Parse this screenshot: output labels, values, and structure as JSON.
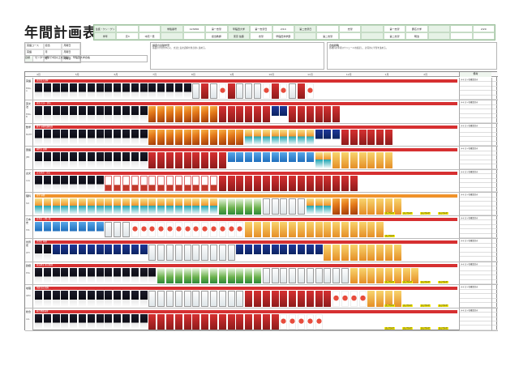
{
  "page": {
    "title": "年間計画表"
  },
  "header": {
    "info_cells": [
      "生徒・ケン・ゲン",
      "",
      "",
      "学籍番号",
      "123456",
      "第一志望",
      "早稲田大学",
      "第一志望日",
      "2/14",
      "第二志望日",
      "",
      "志望",
      "",
      "第一志望",
      "慶応大学",
      "",
      "",
      "2/20",
      "学年",
      "高3",
      "中高一貫",
      "",
      "",
      "担当教師",
      "東京 佐藤",
      "志望",
      "早稲田商学部",
      "",
      "第二志望",
      "",
      "",
      "第二志望",
      "明治",
      "",
      "",
      ""
    ],
    "left_meta": [
      "英語コース",
      "担当",
      "月曜日",
      "英語",
      "月",
      "月曜日",
      "国語",
      "月",
      "月曜日"
    ],
    "goal_key": "目標",
    "goal_text": "センター試験で9割以上を目指し、早稲田大学合格",
    "note_left_title": "講座の基礎学習",
    "note_left": "基礎の学習を中心に、文法と長文読解を重点的に進める。",
    "note_right_title": "合格戦略",
    "note_right": "各教科の年間スケジュールを確認し、計画的に学習を進める。"
  },
  "months": [
    "4月",
    "5月",
    "6月",
    "7月",
    "8月",
    "9月",
    "10月",
    "11月",
    "12月",
    "1月",
    "2月"
  ],
  "remarks_header": "備考",
  "rows": [
    {
      "subject": "英語",
      "code": "ENG-A",
      "band": "英語長文読解",
      "band_color": "#d63031",
      "books": [
        "dark",
        "dark",
        "dark",
        "dark",
        "dark",
        "dark",
        "dark",
        "dark",
        "dark",
        "dark",
        "dark",
        "dark",
        "dark",
        "dark",
        "dark",
        "dark",
        "dark",
        "dark",
        "book2",
        "red",
        "book2",
        "fruit",
        "red",
        "book2",
        "book2",
        "book2",
        "fruit",
        "red",
        "fruit",
        "book2",
        "red",
        "fruit"
      ],
      "remarks": [
        "テキスト名確認済み",
        "",
        "",
        "",
        ""
      ]
    },
    {
      "subject": "英文法",
      "code": "ENG-B",
      "band": "英語 文法・語法",
      "band_color": "#d63031",
      "books": [
        "dark",
        "dark",
        "dark",
        "dark",
        "dark",
        "dark",
        "dark",
        "dark",
        "dark",
        "dark",
        "dark",
        "dark",
        "dark",
        "orange",
        "orange",
        "orange",
        "orange",
        "orange",
        "orange",
        "orange",
        "orange",
        "red",
        "red",
        "red",
        "red",
        "red",
        "red",
        "navy",
        "navy",
        "red",
        "red",
        "red",
        "red",
        "red",
        "red"
      ],
      "remarks": [
        "テキスト名確認済み",
        "",
        "",
        "",
        ""
      ]
    },
    {
      "subject": "数学",
      "code": "MATH",
      "band": "数学 基礎問題精講",
      "band_color": "#d63031",
      "books": [
        "dark",
        "dark",
        "dark",
        "dark",
        "dark",
        "dark",
        "dark",
        "dark",
        "dark",
        "dark",
        "dark",
        "dark",
        "dark",
        "orange",
        "orange",
        "orange",
        "orange",
        "orange",
        "orange",
        "orange",
        "orange",
        "orange",
        "orange",
        "orange",
        "colorful",
        "colorful",
        "colorful",
        "colorful",
        "colorful",
        "colorful",
        "colorful",
        "colorful",
        "navy",
        "navy",
        "navy",
        "red",
        "red",
        "red",
        "red",
        "red",
        "red"
      ],
      "remarks": [
        "テキスト名確認済み",
        "",
        "",
        "",
        ""
      ]
    },
    {
      "subject": "国語",
      "code": "JPN",
      "band": "現代文 読解",
      "band_color": "#d63031",
      "books": [
        "dark",
        "dark",
        "dark",
        "dark",
        "dark",
        "dark",
        "dark",
        "dark",
        "dark",
        "dark",
        "dark",
        "dark",
        "dark",
        "red",
        "red",
        "red",
        "red",
        "red",
        "red",
        "red",
        "red",
        "red",
        "blue",
        "blue",
        "blue",
        "blue",
        "blue",
        "blue",
        "blue",
        "blue",
        "blue",
        "blue",
        "colorful",
        "colorful",
        "gold",
        "gold",
        "gold",
        "gold",
        "gold",
        "gold",
        "gold"
      ],
      "remarks": [
        "テキスト名確認済み",
        "",
        "",
        "",
        ""
      ]
    },
    {
      "subject": "古文",
      "code": "CLS",
      "band": "古文単語・文法",
      "band_color": "#d63031",
      "books": [
        "dark",
        "dark",
        "dark",
        "dark",
        "dark",
        "dark",
        "dark",
        "dark",
        "white",
        "white",
        "white",
        "white",
        "white",
        "white",
        "white",
        "white",
        "white",
        "white",
        "white",
        "white",
        "white",
        "red",
        "red",
        "red",
        "red",
        "red",
        "red",
        "red",
        "red",
        "red",
        "red",
        "red",
        "red",
        "red",
        "red",
        "red",
        "red"
      ],
      "remarks": [
        "テキスト名確認済み",
        "",
        "",
        "",
        ""
      ]
    },
    {
      "subject": "理科",
      "code": "SCI",
      "band": "化学 基礎",
      "band_color": "#f0932b",
      "books": [
        "colorful",
        "colorful",
        "colorful",
        "colorful",
        "colorful",
        "colorful",
        "colorful",
        "colorful",
        "colorful",
        "colorful",
        "colorful",
        "colorful",
        "colorful",
        "colorful",
        "colorful",
        "colorful",
        "colorful",
        "colorful",
        "colorful",
        "colorful",
        "colorful",
        "green",
        "green",
        "green",
        "green",
        "green",
        "book2",
        "book2",
        "book2",
        "book2",
        "book2",
        "colorful",
        "colorful",
        "colorful",
        "orange",
        "orange",
        "orange",
        "gold",
        "gold",
        "gold",
        "gold",
        "gold"
      ],
      "remarks": [
        "テキスト名確認済み",
        "",
        "",
        "",
        ""
      ],
      "tags": [
        "過去問演習",
        "過去問演習",
        "過去問演習",
        "過去問演習"
      ]
    },
    {
      "subject": "日本史",
      "code": "HIS",
      "band": "日本史 一問一答",
      "band_color": "#d63031",
      "books": [
        "blue",
        "blue",
        "blue",
        "blue",
        "blue",
        "blue",
        "blue",
        "blue",
        "book2",
        "book2",
        "book2",
        "fruit",
        "fruit",
        "fruit",
        "fruit",
        "fruit",
        "fruit",
        "fruit",
        "fruit",
        "fruit",
        "fruit",
        "fruit",
        "fruit",
        "fruit",
        "gold",
        "gold",
        "gold",
        "gold",
        "gold",
        "gold",
        "gold",
        "gold",
        "gold",
        "gold",
        "gold",
        "gold",
        "gold",
        "gold",
        "gold",
        "gold"
      ],
      "remarks": [
        "テキスト名確認済み",
        "",
        "",
        "",
        ""
      ],
      "tags": [
        "過去問演習"
      ]
    },
    {
      "subject": "世界史",
      "code": "WH",
      "band": "世界史 基礎",
      "band_color": "#d63031",
      "books": [
        "dark",
        "dark",
        "navy",
        "navy",
        "navy",
        "navy",
        "navy",
        "navy",
        "navy",
        "navy",
        "navy",
        "navy",
        "navy",
        "book2",
        "book2",
        "book2",
        "book2",
        "book2",
        "book2",
        "book2",
        "book2",
        "book2",
        "book2",
        "navy",
        "navy",
        "navy",
        "navy",
        "navy",
        "navy",
        "navy",
        "navy",
        "navy",
        "navy",
        "gold",
        "gold",
        "gold",
        "gold",
        "gold",
        "gold",
        "gold",
        "gold",
        "gold"
      ],
      "remarks": [
        "テキスト名確認済み",
        "",
        "",
        "",
        ""
      ]
    },
    {
      "subject": "政経",
      "code": "POL",
      "band": "政治経済 要点整理",
      "band_color": "#d63031",
      "books": [
        "dark",
        "dark",
        "dark",
        "dark",
        "dark",
        "dark",
        "dark",
        "dark",
        "dark",
        "dark",
        "dark",
        "dark",
        "dark",
        "dark",
        "green",
        "green",
        "green",
        "green",
        "green",
        "green",
        "green",
        "green",
        "green",
        "green",
        "green",
        "green",
        "book2",
        "book2",
        "book2",
        "book2",
        "book2",
        "book2",
        "book2",
        "book2",
        "book2",
        "book2",
        "gold",
        "gold",
        "gold",
        "gold",
        "gold",
        "gold",
        "gold",
        "gold"
      ],
      "remarks": [
        "テキスト名確認済み",
        "",
        "",
        "",
        ""
      ],
      "tags": [
        "過去問演習",
        "過去問演習",
        "過去問演習",
        "過去問演習"
      ]
    },
    {
      "subject": "地理",
      "code": "GEO",
      "band": "地理 統計資料",
      "band_color": "#d63031",
      "books": [
        "dark",
        "dark",
        "dark",
        "dark",
        "dark",
        "dark",
        "dark",
        "dark",
        "dark",
        "dark",
        "dark",
        "dark",
        "dark",
        "book2",
        "book2",
        "book2",
        "book2",
        "book2",
        "book2",
        "book2",
        "book2",
        "book2",
        "book2",
        "book2",
        "red",
        "red",
        "red",
        "red",
        "red",
        "red",
        "red",
        "red",
        "red",
        "red",
        "fruit",
        "fruit",
        "fruit",
        "fruit",
        "gold",
        "gold",
        "gold",
        "gold"
      ],
      "remarks": [
        "テキスト名確認済み",
        "",
        "",
        "",
        ""
      ],
      "tags": [
        "過去問演習",
        "過去問演習",
        "過去問演習",
        "過去問演習"
      ]
    },
    {
      "subject": "総合",
      "code": "ALL",
      "band": "総合問題演習",
      "band_color": "#d63031",
      "books": [
        "dark",
        "dark",
        "dark",
        "dark",
        "dark",
        "dark",
        "dark",
        "dark",
        "dark",
        "dark",
        "dark",
        "dark",
        "dark",
        "red",
        "red",
        "red",
        "red",
        "red",
        "red",
        "red",
        "red",
        "red",
        "red",
        "red",
        "red",
        "red",
        "red",
        "red",
        "fruit",
        "fruit",
        "fruit",
        "fruit",
        "fruit"
      ],
      "remarks": [
        "テキスト名確認済み",
        "",
        "",
        "",
        ""
      ],
      "tags": [
        "過去問演習",
        "過去問演習",
        "過去問演習",
        "過去問演習"
      ]
    }
  ]
}
